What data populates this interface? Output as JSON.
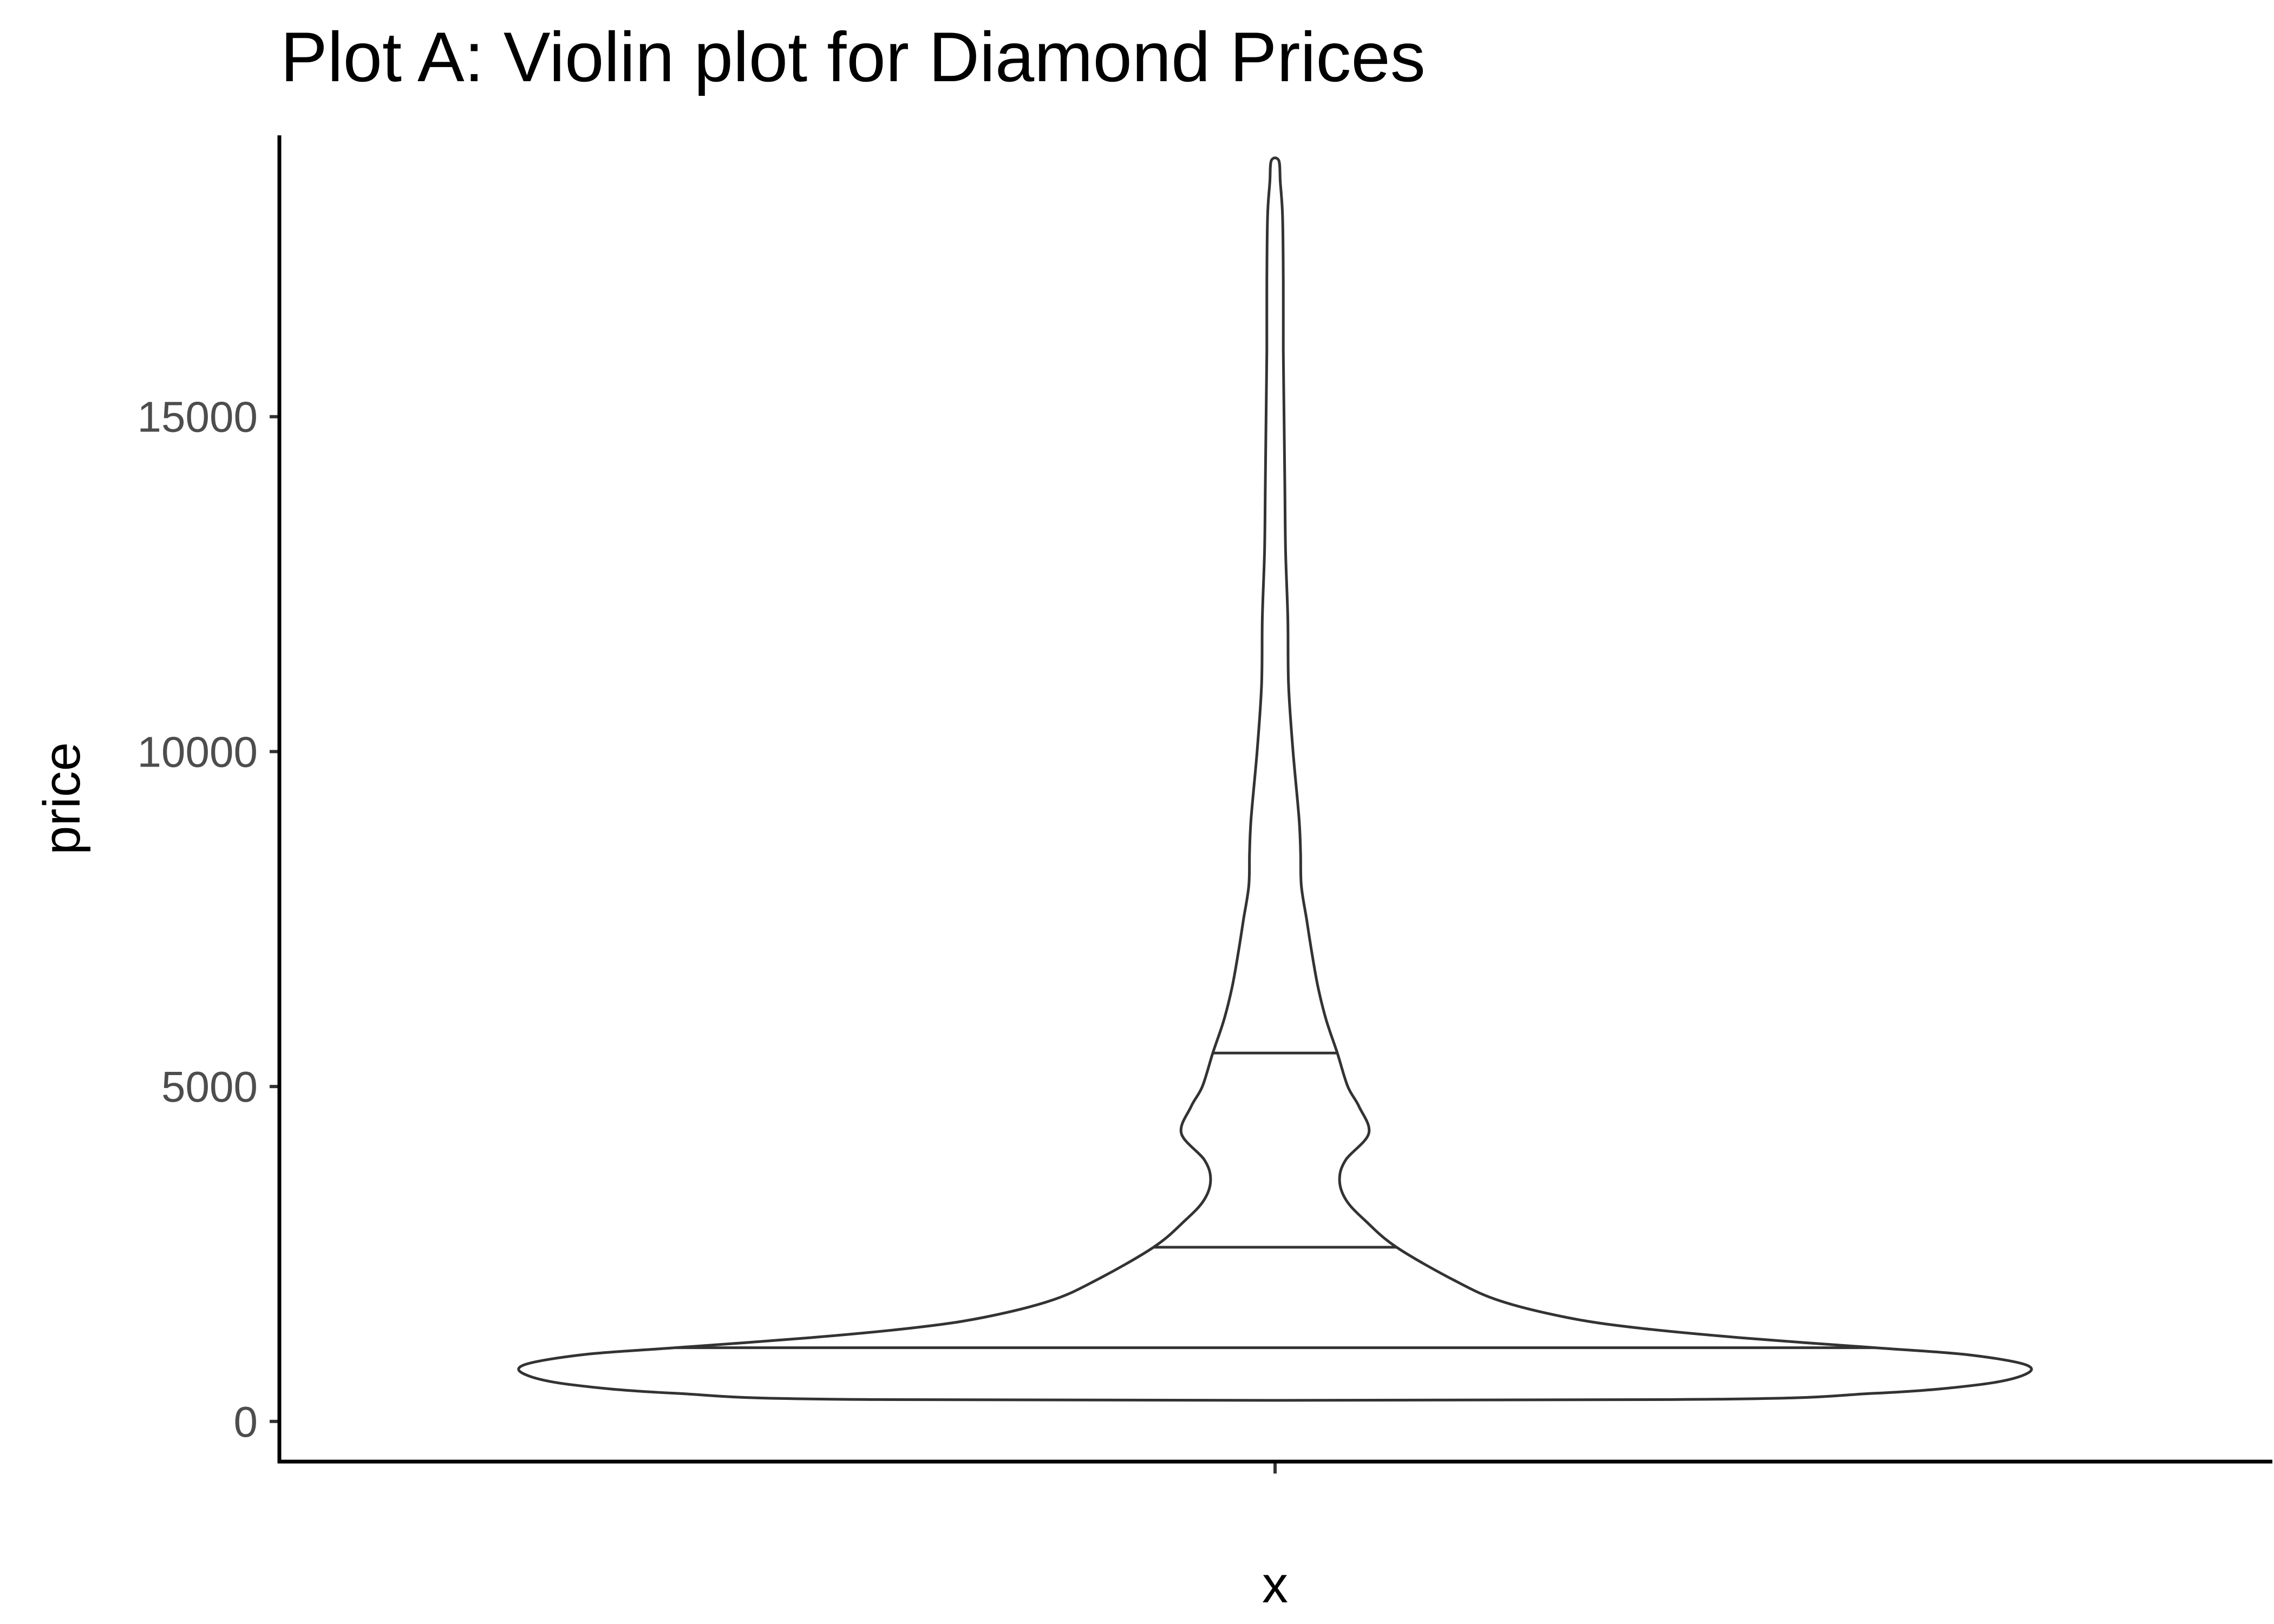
{
  "chart_data": {
    "type": "violin",
    "title": "Plot A: Violin plot for Diamond Prices",
    "xlabel": "x",
    "ylabel": "price",
    "ylim": [
      -600,
      19200
    ],
    "yticks": [
      0,
      5000,
      10000,
      15000
    ],
    "ytick_labels": [
      "0",
      "5000",
      "10000",
      "15000"
    ],
    "grid": false,
    "legend": "none",
    "colors": {
      "outline": "#333333",
      "fill": "#ffffff",
      "axis": "#000000",
      "tick_label": "#4d4d4d"
    },
    "quantiles": [
      {
        "name": "q25",
        "price": 1100
      },
      {
        "name": "median",
        "price": 2600
      },
      {
        "name": "q75",
        "price": 5500
      }
    ],
    "density": [
      {
        "price": 326,
        "width": 0.53
      },
      {
        "price": 420,
        "width": 0.8
      },
      {
        "price": 550,
        "width": 0.94
      },
      {
        "price": 700,
        "width": 1.0
      },
      {
        "price": 850,
        "width": 1.0
      },
      {
        "price": 1000,
        "width": 0.92
      },
      {
        "price": 1100,
        "width": 0.8
      },
      {
        "price": 1250,
        "width": 0.62
      },
      {
        "price": 1400,
        "width": 0.48
      },
      {
        "price": 1550,
        "width": 0.39
      },
      {
        "price": 1800,
        "width": 0.3
      },
      {
        "price": 2100,
        "width": 0.24
      },
      {
        "price": 2600,
        "width": 0.162
      },
      {
        "price": 3000,
        "width": 0.12
      },
      {
        "price": 3300,
        "width": 0.095
      },
      {
        "price": 3600,
        "width": 0.086
      },
      {
        "price": 3900,
        "width": 0.094
      },
      {
        "price": 4300,
        "width": 0.125
      },
      {
        "price": 4700,
        "width": 0.112
      },
      {
        "price": 5000,
        "width": 0.097
      },
      {
        "price": 5500,
        "width": 0.083
      },
      {
        "price": 6000,
        "width": 0.068
      },
      {
        "price": 6500,
        "width": 0.057
      },
      {
        "price": 7000,
        "width": 0.049
      },
      {
        "price": 7500,
        "width": 0.042
      },
      {
        "price": 8000,
        "width": 0.035
      },
      {
        "price": 8500,
        "width": 0.034
      },
      {
        "price": 9000,
        "width": 0.032
      },
      {
        "price": 10000,
        "width": 0.024
      },
      {
        "price": 11000,
        "width": 0.018
      },
      {
        "price": 12000,
        "width": 0.017
      },
      {
        "price": 13000,
        "width": 0.014
      },
      {
        "price": 14000,
        "width": 0.013
      },
      {
        "price": 15000,
        "width": 0.012
      },
      {
        "price": 16000,
        "width": 0.011
      },
      {
        "price": 17000,
        "width": 0.011
      },
      {
        "price": 18000,
        "width": 0.01
      },
      {
        "price": 18500,
        "width": 0.007
      },
      {
        "price": 18823,
        "width": 0.005
      }
    ]
  }
}
